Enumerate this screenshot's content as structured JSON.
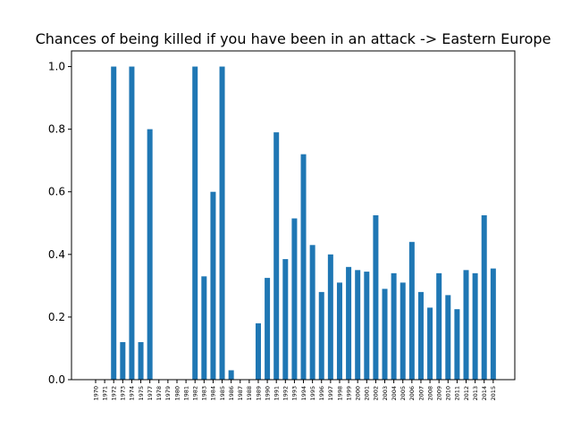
{
  "chart_data": {
    "type": "bar",
    "title": "Chances of being killed if you have been in an attack -> Eastern Europe",
    "categories": [
      "1970",
      "1971",
      "1972",
      "1973",
      "1974",
      "1975",
      "1977",
      "1978",
      "1979",
      "1980",
      "1981",
      "1982",
      "1983",
      "1984",
      "1985",
      "1986",
      "1987",
      "1988",
      "1989",
      "1990",
      "1991",
      "1992",
      "1993",
      "1994",
      "1995",
      "1996",
      "1997",
      "1998",
      "1999",
      "2000",
      "2001",
      "2002",
      "2003",
      "2004",
      "2005",
      "2006",
      "2007",
      "2008",
      "2009",
      "2010",
      "2011",
      "2012",
      "2013",
      "2014",
      "2015"
    ],
    "values": [
      0,
      0,
      1.0,
      0.12,
      1.0,
      0.12,
      0.8,
      0,
      0,
      0,
      0,
      1.0,
      0.33,
      0.6,
      1.0,
      0.03,
      0,
      0,
      0.18,
      0.325,
      0.79,
      0.385,
      0.515,
      0.72,
      0.43,
      0.28,
      0.4,
      0.31,
      0.36,
      0.35,
      0.345,
      0.525,
      0.29,
      0.34,
      0.31,
      0.44,
      0.28,
      0.23,
      0.34,
      0.27,
      0.225,
      0.35,
      0.34,
      0.525,
      0.355
    ],
    "color": "#1f77b4",
    "ylim": [
      0,
      1.05
    ],
    "yticks": [
      {
        "value": 0,
        "label": "0.0"
      },
      0.2,
      0.4,
      0.6,
      0.8,
      {
        "value": 1,
        "label": "1.0"
      }
    ]
  }
}
